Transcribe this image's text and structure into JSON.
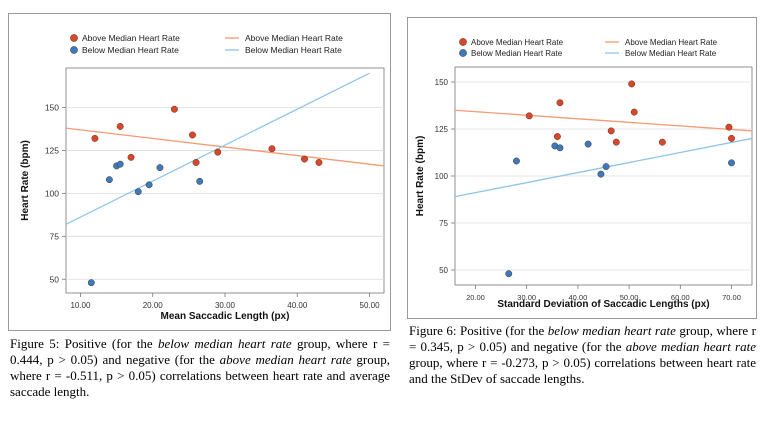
{
  "chart_data": [
    {
      "type": "scatter",
      "xlabel": "Mean Saccadic Length (px)",
      "ylabel": "Heart Rate (bpm)",
      "xlim": [
        8,
        52
      ],
      "ylim": [
        42,
        173
      ],
      "xticks": [
        10,
        20,
        30,
        40,
        50
      ],
      "xtick_labels": [
        "10.00",
        "20.00",
        "30.00",
        "40.00",
        "50.00"
      ],
      "yticks": [
        50,
        75,
        100,
        125,
        150
      ],
      "ytick_labels": [
        "50",
        "75",
        "100",
        "125",
        "150"
      ],
      "grid": "horizontal",
      "legend_position": "top",
      "series": [
        {
          "name": "Above Median Heart Rate",
          "color": "#d9472b",
          "fit_color": "#f49a74",
          "fit_label": "Above Median Heart Rate",
          "x": [
            12.0,
            15.5,
            17.0,
            23.0,
            25.5,
            26.0,
            29.0,
            36.5,
            41.0,
            43.0
          ],
          "y": [
            132,
            139,
            121,
            149,
            134,
            118,
            124,
            126,
            120,
            118
          ],
          "fit": [
            [
              8,
              138
            ],
            [
              52,
              116
            ]
          ]
        },
        {
          "name": "Below Median Heart Rate",
          "color": "#3a7bbf",
          "fit_color": "#8fc4ea",
          "fit_label": "Below Median Heart Rate",
          "x": [
            11.5,
            14.0,
            15.0,
            15.5,
            18.0,
            19.5,
            21.0,
            26.5
          ],
          "y": [
            48,
            108,
            116,
            117,
            101,
            105,
            115,
            107
          ],
          "fit": [
            [
              8,
              82
            ],
            [
              50,
              170
            ]
          ]
        }
      ]
    },
    {
      "type": "scatter",
      "xlabel": "Standard Deviation of Saccadic Lengths (px)",
      "ylabel": "Heart Rate (bpm)",
      "xlim": [
        16,
        74
      ],
      "ylim": [
        42,
        158
      ],
      "xticks": [
        20,
        30,
        40,
        50,
        60,
        70
      ],
      "xtick_labels": [
        "20.00",
        "30.00",
        "40.00",
        "50.00",
        "60.00",
        "70.00"
      ],
      "yticks": [
        50,
        75,
        100,
        125,
        150
      ],
      "ytick_labels": [
        "50",
        "75",
        "100",
        "125",
        "150"
      ],
      "grid": "horizontal",
      "legend_position": "top",
      "series": [
        {
          "name": "Above Median Heart Rate",
          "color": "#d9472b",
          "fit_color": "#f49a74",
          "fit_label": "Above Median Heart Rate",
          "x": [
            30.5,
            36.0,
            36.5,
            46.5,
            47.5,
            50.5,
            51.0,
            56.5,
            69.5,
            70.0
          ],
          "y": [
            132,
            121,
            139,
            124,
            118,
            149,
            134,
            118,
            126,
            120
          ],
          "fit": [
            [
              16,
              135
            ],
            [
              74,
              124
            ]
          ]
        },
        {
          "name": "Below Median Heart Rate",
          "color": "#3a7bbf",
          "fit_color": "#8fc4ea",
          "fit_label": "Below Median Heart Rate",
          "x": [
            26.5,
            28.0,
            35.5,
            36.5,
            42.0,
            44.5,
            45.5,
            70.0
          ],
          "y": [
            48,
            108,
            116,
            115,
            117,
            101,
            105,
            107
          ],
          "fit": [
            [
              16,
              89
            ],
            [
              74,
              120
            ]
          ]
        }
      ]
    }
  ],
  "captions": [
    {
      "s1": "Figure 5: Positive (for the ",
      "em1": "below median heart rate",
      "s2": " group, where r = 0.444, p > 0.05) and negative (for the ",
      "em2": "above median heart rate",
      "s3": " group, where r = -0.511, p > 0.05) correlations between heart rate and average saccade length."
    },
    {
      "s1": "Figure 6: Positive (for the ",
      "em1": "below median heart rate",
      "s2": " group, where r = 0.345, p > 0.05) and negative (for the ",
      "em2": "above median heart rate",
      "s3": " group, where r = -0.273, p > 0.05) correlations between heart rate and the StDev of saccade lengths."
    }
  ]
}
